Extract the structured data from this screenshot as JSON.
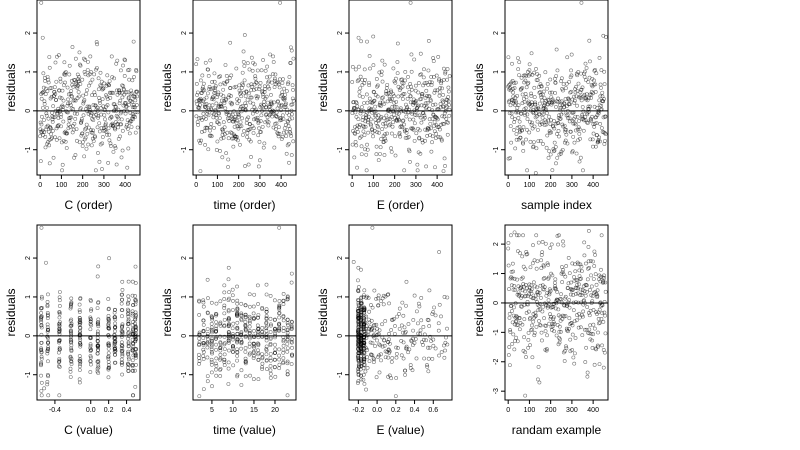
{
  "chart_data": [
    {
      "type": "scatter",
      "xlabel": "C (order)",
      "ylabel": "residuals",
      "xlim": [
        -15,
        470
      ],
      "ylim": [
        -1.65,
        2.85
      ],
      "x_ticks": [
        0,
        100,
        200,
        300,
        400
      ],
      "x_tick_labels": [
        "0",
        "100",
        "200",
        "300",
        "400"
      ],
      "y_ticks": [
        -1,
        0,
        1,
        2
      ],
      "y_tick_labels": [
        "-1",
        "0",
        "1",
        "2"
      ],
      "hline": 0,
      "x_mode": "order",
      "n": 460,
      "y_mean": 0.03,
      "y_sd": 0.6,
      "x_jitter": 0,
      "seed": 11,
      "extra_points": [
        [
          5,
          2.78
        ],
        [
          12,
          1.88
        ],
        [
          440,
          1.78
        ],
        [
          45,
          -1.35
        ],
        [
          360,
          -1.38
        ]
      ]
    },
    {
      "type": "scatter",
      "xlabel": "time (order)",
      "ylabel": "residuals",
      "xlim": [
        -15,
        470
      ],
      "ylim": [
        -1.65,
        2.85
      ],
      "x_ticks": [
        0,
        100,
        200,
        300,
        400
      ],
      "x_tick_labels": [
        "0",
        "100",
        "200",
        "300",
        "400"
      ],
      "y_ticks": [
        -1,
        0,
        1,
        2
      ],
      "y_tick_labels": [
        "-1",
        "0",
        "1",
        "2"
      ],
      "hline": 0,
      "x_mode": "order",
      "n": 460,
      "y_mean": 0.05,
      "y_sd": 0.58,
      "x_jitter": 0,
      "seed": 23,
      "extra_points": [
        [
          395,
          2.78
        ],
        [
          160,
          1.75
        ],
        [
          450,
          1.55
        ],
        [
          20,
          -1.55
        ],
        [
          230,
          -1.42
        ]
      ]
    },
    {
      "type": "scatter",
      "xlabel": "E (order)",
      "ylabel": "residuals",
      "xlim": [
        -15,
        470
      ],
      "ylim": [
        -1.65,
        2.85
      ],
      "x_ticks": [
        0,
        100,
        200,
        300,
        400
      ],
      "x_tick_labels": [
        "0",
        "100",
        "200",
        "300",
        "400"
      ],
      "y_ticks": [
        -1,
        0,
        1,
        2
      ],
      "y_tick_labels": [
        "-1",
        "0",
        "1",
        "2"
      ],
      "hline": 0,
      "x_mode": "order",
      "n": 460,
      "y_mean": 0.05,
      "y_sd": 0.6,
      "x_jitter": 0,
      "seed": 37,
      "extra_points": [
        [
          275,
          2.78
        ],
        [
          30,
          1.88
        ],
        [
          70,
          1.78
        ],
        [
          430,
          -1.55
        ],
        [
          390,
          -1.45
        ]
      ]
    },
    {
      "type": "scatter",
      "xlabel": "sample index",
      "ylabel": "residuals",
      "xlim": [
        -15,
        470
      ],
      "ylim": [
        -1.65,
        2.85
      ],
      "x_ticks": [
        0,
        100,
        200,
        300,
        400
      ],
      "x_tick_labels": [
        "0",
        "100",
        "200",
        "300",
        "400"
      ],
      "y_ticks": [
        -1,
        0,
        1,
        2
      ],
      "y_tick_labels": [
        "-1",
        "0",
        "1",
        "2"
      ],
      "hline": 0,
      "x_mode": "order",
      "n": 460,
      "y_mean": 0.04,
      "y_sd": 0.58,
      "x_jitter": 0,
      "seed": 53,
      "extra_points": [
        [
          345,
          2.78
        ],
        [
          460,
          1.9
        ],
        [
          110,
          1.48
        ],
        [
          130,
          -1.6
        ],
        [
          225,
          -1.35
        ]
      ]
    },
    {
      "type": "scatter",
      "xlabel": "C (value)",
      "ylabel": "residuals",
      "xlim": [
        -0.6,
        0.55
      ],
      "ylim": [
        -1.65,
        2.85
      ],
      "x_ticks": [
        -0.4,
        0.0,
        0.2,
        0.4
      ],
      "x_tick_labels": [
        "-0.4",
        "0.0",
        "0.2",
        "0.4"
      ],
      "y_ticks": [
        -1,
        0,
        1,
        2
      ],
      "y_tick_labels": [
        "-1",
        "0",
        "1",
        "2"
      ],
      "hline": 0,
      "x_mode": "discrete",
      "x_levels": [
        -0.55,
        -0.48,
        -0.35,
        -0.22,
        -0.12,
        0.0,
        0.08,
        0.2,
        0.27,
        0.35,
        0.42,
        0.47,
        0.5
      ],
      "n": 460,
      "y_mean": 0.03,
      "y_sd": 0.6,
      "x_jitter": 0.006,
      "seed": 71,
      "extra_points": [
        [
          -0.55,
          2.78
        ],
        [
          -0.5,
          1.88
        ],
        [
          0.5,
          1.78
        ],
        [
          -0.52,
          -1.35
        ]
      ]
    },
    {
      "type": "scatter",
      "xlabel": "time (value)",
      "ylabel": "residuals",
      "xlim": [
        0.5,
        25
      ],
      "ylim": [
        -1.65,
        2.85
      ],
      "x_ticks": [
        5,
        10,
        15,
        20
      ],
      "x_tick_labels": [
        "5",
        "10",
        "15",
        "20"
      ],
      "y_ticks": [
        -1,
        0,
        1,
        2
      ],
      "y_tick_labels": [
        "-1",
        "0",
        "1",
        "2"
      ],
      "hline": 0,
      "x_mode": "discrete",
      "x_levels": [
        2,
        3,
        4,
        5,
        6,
        7,
        8,
        9,
        10,
        11,
        12,
        13,
        14,
        15,
        16,
        17,
        18,
        19,
        20,
        21,
        22,
        23,
        24
      ],
      "n": 460,
      "y_mean": 0.05,
      "y_sd": 0.58,
      "x_jitter": 0.08,
      "seed": 83,
      "extra_points": [
        [
          21,
          2.78
        ],
        [
          9,
          1.75
        ],
        [
          24,
          1.6
        ],
        [
          2,
          -1.55
        ]
      ]
    },
    {
      "type": "scatter",
      "xlabel": "E (value)",
      "ylabel": "residuals",
      "xlim": [
        -0.3,
        0.8
      ],
      "ylim": [
        -1.65,
        2.85
      ],
      "x_ticks": [
        -0.2,
        0.0,
        0.2,
        0.4,
        0.6
      ],
      "x_tick_labels": [
        "-0.2",
        "0.0",
        "0.2",
        "0.4",
        "0.6"
      ],
      "y_ticks": [
        -1,
        0,
        1,
        2
      ],
      "y_tick_labels": [
        "-1",
        "0",
        "1",
        "2"
      ],
      "hline": 0,
      "x_mode": "skewed",
      "x_levels": [
        -0.2,
        -0.17,
        -0.14
      ],
      "n": 460,
      "y_mean": 0.03,
      "y_sd": 0.6,
      "x_jitter": 0.005,
      "seed": 97,
      "extra_points": [
        [
          -0.05,
          2.78
        ],
        [
          -0.25,
          1.9
        ],
        [
          -0.2,
          1.75
        ],
        [
          0.72,
          1.0
        ],
        [
          0.2,
          -1.55
        ]
      ]
    },
    {
      "type": "scatter",
      "xlabel": "randam example",
      "ylabel": "residuals",
      "xlim": [
        -15,
        470
      ],
      "ylim": [
        -3.3,
        2.65
      ],
      "x_ticks": [
        0,
        100,
        200,
        300,
        400
      ],
      "x_tick_labels": [
        "0",
        "100",
        "200",
        "300",
        "400"
      ],
      "y_ticks": [
        -3,
        -2,
        -1,
        0,
        1,
        2
      ],
      "y_tick_labels": [
        "-3",
        "-2",
        "-1",
        "0",
        "1",
        "2"
      ],
      "hline": 0,
      "x_mode": "order",
      "n": 460,
      "y_mean": 0.05,
      "y_sd": 1.0,
      "x_jitter": 0,
      "seed": 131,
      "extra_points": [
        [
          80,
          -3.15
        ],
        [
          140,
          -2.6
        ],
        [
          450,
          -2.2
        ],
        [
          380,
          2.45
        ],
        [
          30,
          2.4
        ]
      ]
    }
  ]
}
